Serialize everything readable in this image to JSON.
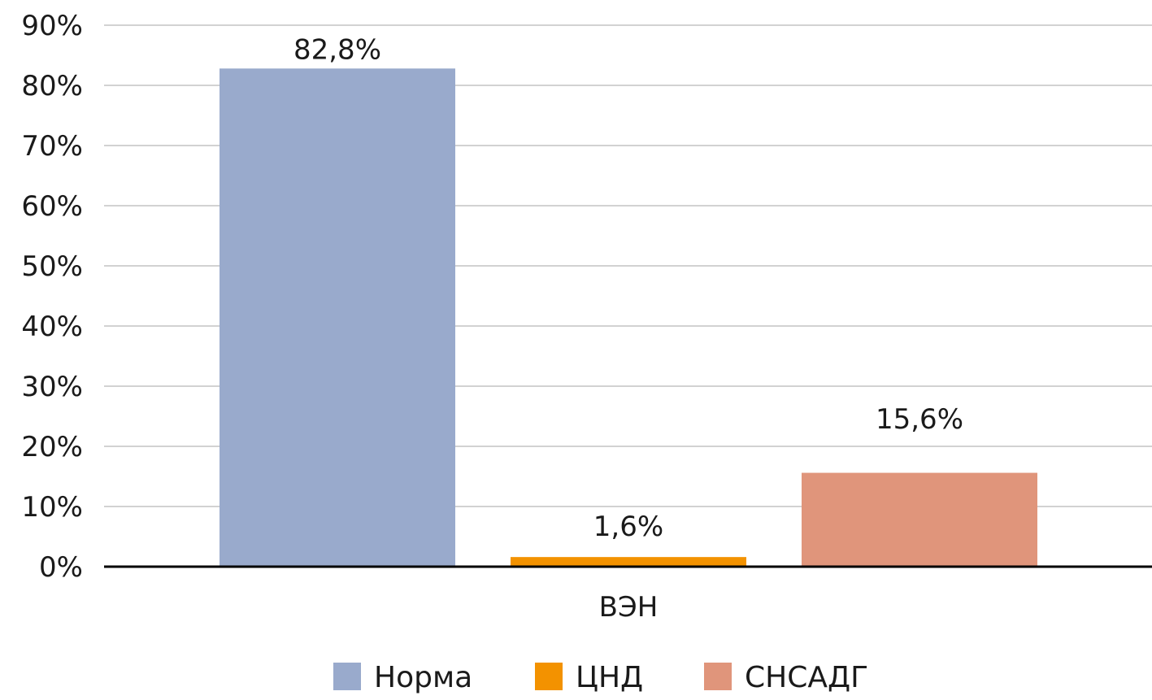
{
  "chart_data": {
    "type": "bar",
    "title": "",
    "xlabel": "",
    "ylabel": "",
    "categories": [
      "ВЭН"
    ],
    "series": [
      {
        "name": "Норма",
        "values": [
          82.8
        ],
        "label": "82,8%",
        "color": "#99aacc"
      },
      {
        "name": "ЦНД",
        "values": [
          1.6
        ],
        "label": "1,6%",
        "color": "#f39200"
      },
      {
        "name": "СНСАДГ",
        "values": [
          15.6
        ],
        "label": "15,6%",
        "color": "#e0957b"
      }
    ],
    "ylim": [
      0,
      90
    ],
    "yticks": [
      0,
      10,
      20,
      30,
      40,
      50,
      60,
      70,
      80,
      90
    ],
    "ytick_labels": [
      "0%",
      "10%",
      "20%",
      "30%",
      "40%",
      "50%",
      "60%",
      "70%",
      "80%",
      "90%"
    ],
    "grid": true,
    "legend_position": "bottom"
  }
}
